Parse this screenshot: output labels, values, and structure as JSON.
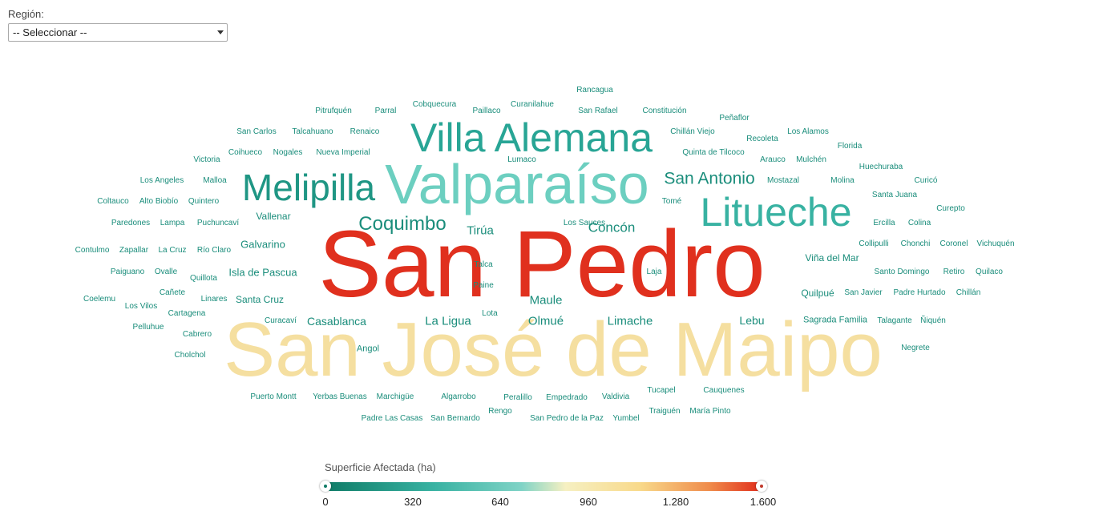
{
  "filter": {
    "label": "Región:",
    "selected": "-- Seleccionar --"
  },
  "colors": {
    "teal_dark": "#128a73",
    "teal": "#38b2a2",
    "teal_light": "#5fc9b9",
    "yellow_light": "#f5dfa0",
    "red": "#e0301e"
  },
  "legend": {
    "title": "Superficie Afectada (ha)",
    "ticks": [
      "0",
      "320",
      "640",
      "960",
      "1.280",
      "1.600"
    ],
    "range": [
      0,
      1600
    ]
  },
  "words": [
    {
      "text": "San Pedro",
      "color": "#e0301e"
    },
    {
      "text": "San José de Maipo",
      "color": "#f5dfa0"
    },
    {
      "text": "Valparaíso",
      "color": "#6ccfc0"
    },
    {
      "text": "Villa Alemana",
      "color": "#28a595"
    },
    {
      "text": "Litueche",
      "color": "#38b2a2"
    },
    {
      "text": "Melipilla",
      "color": "#1f9684"
    },
    {
      "text": "Coquimbo",
      "color": "#1a8d7b"
    },
    {
      "text": "Concón",
      "color": "#1a8d7b"
    },
    {
      "text": "San Antonio",
      "color": "#1a8d7b"
    },
    {
      "text": "Tirúa",
      "color": "#1a8d7b"
    },
    {
      "text": "Maule",
      "color": "#1a8d7b"
    },
    {
      "text": "La Ligua",
      "color": "#1a8d7b"
    },
    {
      "text": "Olmué",
      "color": "#1a8d7b"
    },
    {
      "text": "Limache",
      "color": "#1a8d7b"
    },
    {
      "text": "Casablanca",
      "color": "#1a8d7b"
    },
    {
      "text": "Lebu",
      "color": "#1a8d7b"
    },
    {
      "text": "Isla de Pascua",
      "color": "#1a8d7b"
    },
    {
      "text": "Galvarino",
      "color": "#1a8d7b"
    },
    {
      "text": "Vallenar",
      "color": "#1a8d7b"
    },
    {
      "text": "Viña del Mar",
      "color": "#1a8d7b"
    },
    {
      "text": "Quilpué",
      "color": "#1a8d7b"
    },
    {
      "text": "Santa Cruz",
      "color": "#1a8d7b"
    },
    {
      "text": "Angol",
      "color": "#1a8d7b"
    },
    {
      "text": "Sagrada Familia",
      "color": "#1a8d7b"
    },
    {
      "text": "Rancagua",
      "color": "#1a8d7b"
    },
    {
      "text": "Pitrufquén",
      "color": "#1a8d7b"
    },
    {
      "text": "Parral",
      "color": "#1a8d7b"
    },
    {
      "text": "Cobquecura",
      "color": "#1a8d7b"
    },
    {
      "text": "Paillaco",
      "color": "#1a8d7b"
    },
    {
      "text": "Curanilahue",
      "color": "#1a8d7b"
    },
    {
      "text": "San Rafael",
      "color": "#1a8d7b"
    },
    {
      "text": "Constitución",
      "color": "#1a8d7b"
    },
    {
      "text": "Peñaflor",
      "color": "#1a8d7b"
    },
    {
      "text": "San Carlos",
      "color": "#1a8d7b"
    },
    {
      "text": "Talcahuano",
      "color": "#1a8d7b"
    },
    {
      "text": "Renaico",
      "color": "#1a8d7b"
    },
    {
      "text": "Chillán Viejo",
      "color": "#1a8d7b"
    },
    {
      "text": "Recoleta",
      "color": "#1a8d7b"
    },
    {
      "text": "Los Alamos",
      "color": "#1a8d7b"
    },
    {
      "text": "Florida",
      "color": "#1a8d7b"
    },
    {
      "text": "Victoria",
      "color": "#1a8d7b"
    },
    {
      "text": "Coihueco",
      "color": "#1a8d7b"
    },
    {
      "text": "Nogales",
      "color": "#1a8d7b"
    },
    {
      "text": "Nueva Imperial",
      "color": "#1a8d7b"
    },
    {
      "text": "Lumaco",
      "color": "#1a8d7b"
    },
    {
      "text": "Quinta de Tilcoco",
      "color": "#1a8d7b"
    },
    {
      "text": "Arauco",
      "color": "#1a8d7b"
    },
    {
      "text": "Mulchén",
      "color": "#1a8d7b"
    },
    {
      "text": "Huechuraba",
      "color": "#1a8d7b"
    },
    {
      "text": "Los Angeles",
      "color": "#1a8d7b"
    },
    {
      "text": "Malloa",
      "color": "#1a8d7b"
    },
    {
      "text": "Mostazal",
      "color": "#1a8d7b"
    },
    {
      "text": "Molina",
      "color": "#1a8d7b"
    },
    {
      "text": "Curicó",
      "color": "#1a8d7b"
    },
    {
      "text": "Coltauco",
      "color": "#1a8d7b"
    },
    {
      "text": "Alto Biobío",
      "color": "#1a8d7b"
    },
    {
      "text": "Quintero",
      "color": "#1a8d7b"
    },
    {
      "text": "Tomé",
      "color": "#1a8d7b"
    },
    {
      "text": "Santa Juana",
      "color": "#1a8d7b"
    },
    {
      "text": "Curepto",
      "color": "#1a8d7b"
    },
    {
      "text": "Paredones",
      "color": "#1a8d7b"
    },
    {
      "text": "Lampa",
      "color": "#1a8d7b"
    },
    {
      "text": "Puchuncaví",
      "color": "#1a8d7b"
    },
    {
      "text": "Los Sauces",
      "color": "#1a8d7b"
    },
    {
      "text": "Ercilla",
      "color": "#1a8d7b"
    },
    {
      "text": "Colina",
      "color": "#1a8d7b"
    },
    {
      "text": "Collipulli",
      "color": "#1a8d7b"
    },
    {
      "text": "Chonchi",
      "color": "#1a8d7b"
    },
    {
      "text": "Coronel",
      "color": "#1a8d7b"
    },
    {
      "text": "Vichuquén",
      "color": "#1a8d7b"
    },
    {
      "text": "Contulmo",
      "color": "#1a8d7b"
    },
    {
      "text": "Zapallar",
      "color": "#1a8d7b"
    },
    {
      "text": "La Cruz",
      "color": "#1a8d7b"
    },
    {
      "text": "Río Claro",
      "color": "#1a8d7b"
    },
    {
      "text": "Talca",
      "color": "#1a8d7b"
    },
    {
      "text": "Laja",
      "color": "#1a8d7b"
    },
    {
      "text": "Paiguano",
      "color": "#1a8d7b"
    },
    {
      "text": "Ovalle",
      "color": "#1a8d7b"
    },
    {
      "text": "Quillota",
      "color": "#1a8d7b"
    },
    {
      "text": "Santo Domingo",
      "color": "#1a8d7b"
    },
    {
      "text": "Retiro",
      "color": "#1a8d7b"
    },
    {
      "text": "Quilaco",
      "color": "#1a8d7b"
    },
    {
      "text": "Paine",
      "color": "#1a8d7b"
    },
    {
      "text": "Coelemu",
      "color": "#1a8d7b"
    },
    {
      "text": "Cañete",
      "color": "#1a8d7b"
    },
    {
      "text": "Linares",
      "color": "#1a8d7b"
    },
    {
      "text": "San Javier",
      "color": "#1a8d7b"
    },
    {
      "text": "Padre Hurtado",
      "color": "#1a8d7b"
    },
    {
      "text": "Chillán",
      "color": "#1a8d7b"
    },
    {
      "text": "Los Vilos",
      "color": "#1a8d7b"
    },
    {
      "text": "Cartagena",
      "color": "#1a8d7b"
    },
    {
      "text": "Lota",
      "color": "#1a8d7b"
    },
    {
      "text": "Curacaví",
      "color": "#1a8d7b"
    },
    {
      "text": "Talagante",
      "color": "#1a8d7b"
    },
    {
      "text": "Ñiquén",
      "color": "#1a8d7b"
    },
    {
      "text": "Pelluhue",
      "color": "#1a8d7b"
    },
    {
      "text": "Cabrero",
      "color": "#1a8d7b"
    },
    {
      "text": "Negrete",
      "color": "#1a8d7b"
    },
    {
      "text": "Cholchol",
      "color": "#1a8d7b"
    },
    {
      "text": "Tucapel",
      "color": "#1a8d7b"
    },
    {
      "text": "Cauquenes",
      "color": "#1a8d7b"
    },
    {
      "text": "Puerto Montt",
      "color": "#1a8d7b"
    },
    {
      "text": "Yerbas Buenas",
      "color": "#1a8d7b"
    },
    {
      "text": "Marchigüe",
      "color": "#1a8d7b"
    },
    {
      "text": "Algarrobo",
      "color": "#1a8d7b"
    },
    {
      "text": "Peralillo",
      "color": "#1a8d7b"
    },
    {
      "text": "Empedrado",
      "color": "#1a8d7b"
    },
    {
      "text": "Valdivia",
      "color": "#1a8d7b"
    },
    {
      "text": "Rengo",
      "color": "#1a8d7b"
    },
    {
      "text": "Traiguén",
      "color": "#1a8d7b"
    },
    {
      "text": "María Pinto",
      "color": "#1a8d7b"
    },
    {
      "text": "Padre Las Casas",
      "color": "#1a8d7b"
    },
    {
      "text": "San Bernardo",
      "color": "#1a8d7b"
    },
    {
      "text": "San Pedro de la Paz",
      "color": "#1a8d7b"
    },
    {
      "text": "Yumbel",
      "color": "#1a8d7b"
    }
  ]
}
